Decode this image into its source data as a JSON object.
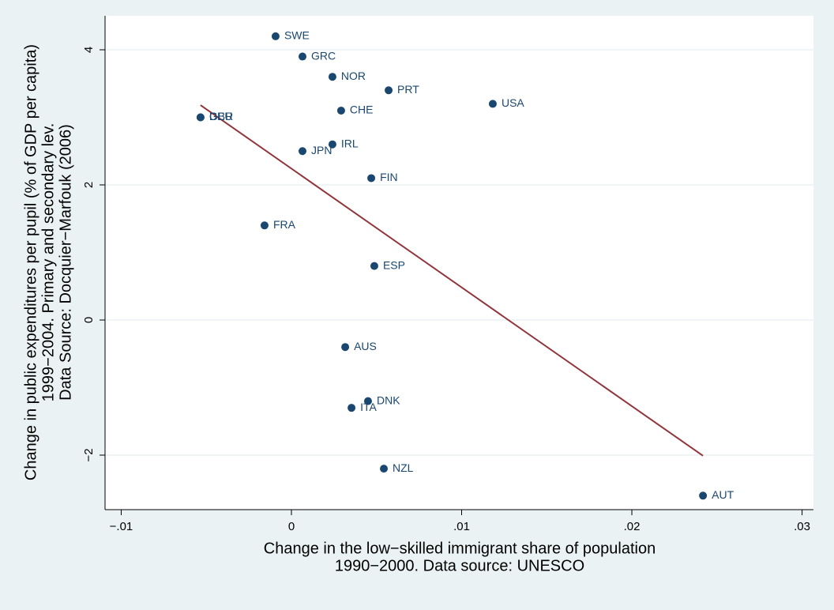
{
  "chart_data": {
    "type": "scatter",
    "labels": [
      "SWE",
      "GRC",
      "NOR",
      "PRT",
      "USA",
      "CHE",
      "GBR",
      "DEU",
      "IRL",
      "JPN",
      "FIN",
      "FRA",
      "ESP",
      "AUS",
      "DNK",
      "ITA",
      "NZL",
      "AUT"
    ],
    "x": [
      -0.00093,
      0.00065,
      0.00241,
      0.00571,
      0.01183,
      0.00292,
      -0.00534,
      -0.00534,
      0.00241,
      0.00065,
      0.00469,
      -0.00158,
      0.00487,
      0.00316,
      0.0045,
      0.00353,
      0.00543,
      0.02418
    ],
    "y": [
      4.2,
      3.9,
      3.6,
      3.4,
      3.2,
      3.1,
      3.0,
      3.0,
      2.6,
      2.5,
      2.1,
      1.4,
      0.8,
      -0.4,
      -1.2,
      -1.3,
      -2.2,
      -2.6
    ],
    "color": "#1a476f",
    "fit": {
      "x": [
        -0.00534,
        0.02418
      ],
      "y": [
        3.18,
        -2.01
      ],
      "color": "#90353b"
    },
    "xlim": [
      -0.01095,
      0.03067
    ],
    "ylim": [
      -2.807,
      4.503
    ],
    "xticks": [
      {
        "value": -0.01,
        "label": "−.01"
      },
      0,
      {
        "value": 0.01,
        "label": ".01"
      },
      {
        "value": 0.02,
        "label": ".02"
      },
      {
        "value": 0.03,
        "label": ".03"
      }
    ],
    "yticks": [
      {
        "value": -2,
        "label": "−2"
      },
      0,
      2,
      4
    ],
    "grid": true,
    "xlabel": [
      "Change in the low−skilled immigrant share of population",
      "1990−2000. Data source: UNESCO"
    ],
    "ylabel": [
      "Change in public expenditures per pupil (% of GDP per capita)",
      "1999−2004. Primary and secondary lev.",
      "Data Source: Docquier−Marfouk (2006)"
    ]
  }
}
